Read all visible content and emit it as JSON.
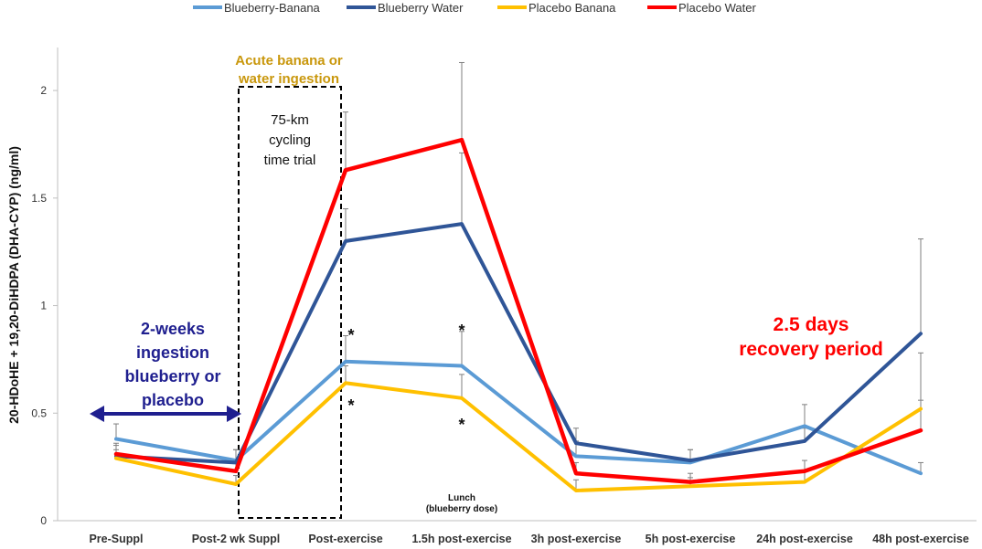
{
  "chart_data": {
    "type": "line",
    "title": "",
    "xlabel": "",
    "ylabel": "20-HDoHE + 19,20-DiHDPA (DHA-CYP) (ng/ml)",
    "ylim": [
      0,
      2.2
    ],
    "yticks": [
      "0",
      "0.5",
      "1",
      "1.5",
      "2"
    ],
    "ytick_values": [
      0,
      0.5,
      1,
      1.5,
      2
    ],
    "categories": [
      "Pre-Suppl",
      "Post-2 wk Suppl",
      "Post-exercise",
      "1.5h post-exercise",
      "3h post-exercise",
      "5h post-exercise",
      "24h post-exercise",
      "48h post-exercise"
    ],
    "grid": false,
    "legend": "top",
    "series": [
      {
        "name": "Blueberry-Banana",
        "color": "#5B9BD5",
        "values": [
          0.38,
          0.28,
          0.74,
          0.72,
          0.3,
          0.27,
          0.44,
          0.22
        ],
        "errors": [
          0.07,
          0.05,
          0.12,
          0.16,
          0.07,
          0.06,
          0.1,
          0.05
        ]
      },
      {
        "name": "Blueberry Water",
        "color": "#2F5597",
        "values": [
          0.3,
          0.27,
          1.3,
          1.38,
          0.36,
          0.28,
          0.37,
          0.87
        ],
        "errors": [
          0.05,
          0.06,
          0.15,
          0.33,
          0.07,
          0.05,
          0.06,
          0.44
        ]
      },
      {
        "name": "Placebo Banana",
        "color": "#FFC000",
        "values": [
          0.29,
          0.17,
          0.64,
          0.57,
          0.14,
          0.16,
          0.18,
          0.52
        ],
        "errors": [
          0.04,
          0.04,
          0.08,
          0.11,
          0.05,
          0.04,
          0.05,
          0.26
        ]
      },
      {
        "name": "Placebo Water",
        "color": "#FF0000",
        "values": [
          0.31,
          0.23,
          1.63,
          1.77,
          0.22,
          0.18,
          0.23,
          0.42
        ],
        "errors": [
          0.05,
          0.05,
          0.27,
          0.36,
          0.05,
          0.04,
          0.05,
          0.14
        ]
      }
    ],
    "annotations": {
      "box_title": "Acute banana or water ingestion",
      "box_title_line1": "Acute banana or",
      "box_title_line2": "water ingestion",
      "box_title_color": "#C9970C",
      "box_line1": "75-km",
      "box_line2": "cycling",
      "box_line3": "time trial",
      "supp_line1": "2-weeks",
      "supp_line2": "ingestion",
      "supp_line3": "blueberry or",
      "supp_line4": "placebo",
      "supp_color": "#1F1F8F",
      "recovery_line1": "2.5 days",
      "recovery_line2": "recovery period",
      "recovery_color": "#FF0000",
      "lunch_line1": "Lunch",
      "lunch_line2": "(blueberry dose)",
      "star": "*"
    }
  }
}
